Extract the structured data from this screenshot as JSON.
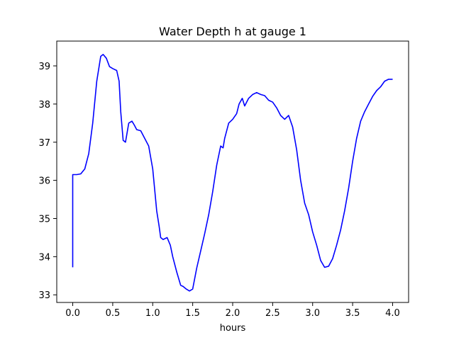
{
  "chart_data": {
    "type": "line",
    "title": "Water Depth h at gauge 1",
    "xlabel": "hours",
    "ylabel": "",
    "xlim": [
      -0.2,
      4.2
    ],
    "ylim": [
      32.8,
      39.65
    ],
    "x_ticks": [
      0.0,
      0.5,
      1.0,
      1.5,
      2.0,
      2.5,
      3.0,
      3.5,
      4.0
    ],
    "x_tick_labels": [
      "0.0",
      "0.5",
      "1.0",
      "1.5",
      "2.0",
      "2.5",
      "3.0",
      "3.5",
      "4.0"
    ],
    "y_ticks": [
      33,
      34,
      35,
      36,
      37,
      38,
      39
    ],
    "y_tick_labels": [
      "33",
      "34",
      "35",
      "36",
      "37",
      "38",
      "39"
    ],
    "grid": false,
    "legend": "none",
    "series": [
      {
        "color": "#0000ff",
        "x": [
          0.0,
          0.0,
          0.05,
          0.1,
          0.15,
          0.2,
          0.25,
          0.3,
          0.35,
          0.38,
          0.42,
          0.46,
          0.5,
          0.55,
          0.58,
          0.6,
          0.63,
          0.66,
          0.7,
          0.74,
          0.77,
          0.8,
          0.85,
          0.9,
          0.95,
          1.0,
          1.05,
          1.08,
          1.1,
          1.13,
          1.18,
          1.22,
          1.25,
          1.3,
          1.35,
          1.38,
          1.42,
          1.46,
          1.5,
          1.55,
          1.6,
          1.65,
          1.7,
          1.75,
          1.8,
          1.85,
          1.88,
          1.9,
          1.95,
          2.0,
          2.05,
          2.08,
          2.12,
          2.15,
          2.2,
          2.25,
          2.3,
          2.35,
          2.4,
          2.45,
          2.5,
          2.55,
          2.6,
          2.65,
          2.7,
          2.75,
          2.8,
          2.85,
          2.9,
          2.95,
          3.0,
          3.05,
          3.1,
          3.15,
          3.2,
          3.25,
          3.3,
          3.35,
          3.4,
          3.45,
          3.5,
          3.55,
          3.6,
          3.65,
          3.7,
          3.75,
          3.8,
          3.85,
          3.9,
          3.95,
          4.0
        ],
        "y": [
          33.72,
          36.15,
          36.15,
          36.17,
          36.3,
          36.7,
          37.5,
          38.6,
          39.25,
          39.3,
          39.2,
          38.98,
          38.93,
          38.88,
          38.6,
          37.8,
          37.05,
          37.0,
          37.5,
          37.55,
          37.45,
          37.33,
          37.3,
          37.1,
          36.9,
          36.3,
          35.2,
          34.8,
          34.5,
          34.45,
          34.5,
          34.3,
          34.0,
          33.6,
          33.25,
          33.22,
          33.15,
          33.1,
          33.15,
          33.7,
          34.15,
          34.6,
          35.1,
          35.7,
          36.4,
          36.9,
          36.85,
          37.1,
          37.5,
          37.6,
          37.75,
          38.0,
          38.15,
          37.95,
          38.15,
          38.25,
          38.3,
          38.25,
          38.22,
          38.1,
          38.05,
          37.9,
          37.7,
          37.6,
          37.7,
          37.4,
          36.8,
          36.0,
          35.4,
          35.1,
          34.65,
          34.3,
          33.9,
          33.72,
          33.75,
          33.95,
          34.3,
          34.7,
          35.2,
          35.8,
          36.5,
          37.1,
          37.55,
          37.8,
          38.0,
          38.2,
          38.35,
          38.45,
          38.6,
          38.65,
          38.65
        ]
      }
    ]
  }
}
